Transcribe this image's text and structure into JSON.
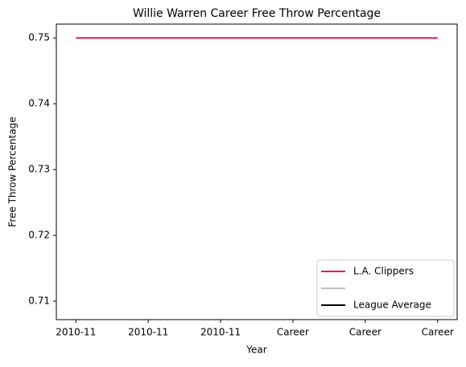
{
  "chart_data": {
    "type": "line",
    "title": "Willie Warren Career Free Throw Percentage",
    "xlabel": "Year",
    "ylabel": "Free Throw Percentage",
    "categories": [
      "2010-11",
      "2010-11",
      "2010-11",
      "Career",
      "Career",
      "Career"
    ],
    "series": [
      {
        "name": "L.A. Clippers",
        "color": "#e31b4c",
        "values": [
          0.75,
          0.75,
          0.75,
          0.75,
          0.75,
          0.75
        ]
      },
      {
        "color": "#c0c0c0",
        "values": [
          null,
          null,
          null,
          null,
          null,
          null
        ]
      },
      {
        "name": "League Average",
        "color": "#000000",
        "values": [
          null,
          null,
          null,
          null,
          null,
          null
        ]
      }
    ],
    "xlim": [
      -0.27,
      5.27
    ],
    "ylim": [
      0.7072,
      0.7521
    ],
    "yticks": [
      0.71,
      0.72,
      0.73,
      0.74,
      0.75
    ],
    "legend": "lower right"
  }
}
